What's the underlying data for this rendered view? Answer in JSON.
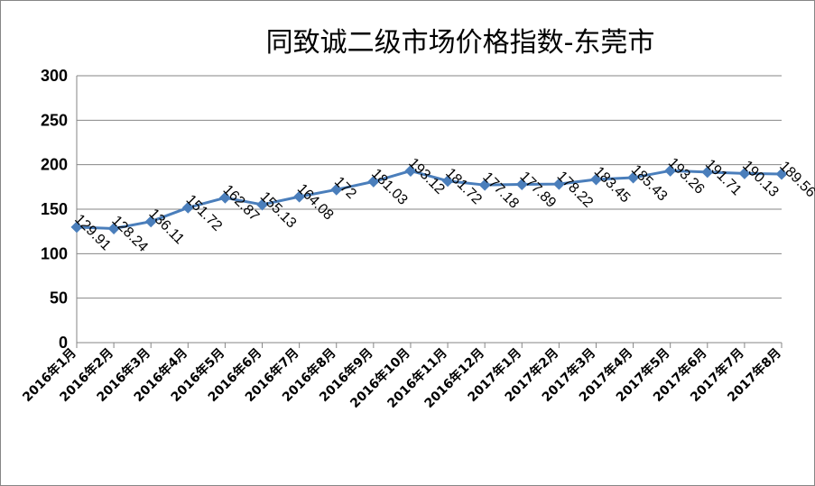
{
  "chart_data": {
    "type": "line",
    "title": "同致诚二级市场价格指数-东莞市",
    "xlabel": "",
    "ylabel": "",
    "categories": [
      "2016年1月",
      "2016年2月",
      "2016年3月",
      "2016年4月",
      "2016年5月",
      "2016年6月",
      "2016年7月",
      "2016年8月",
      "2016年9月",
      "2016年10月",
      "2016年11月",
      "2016年12月",
      "2017年1月",
      "2017年2月",
      "2017年3月",
      "2017年4月",
      "2017年5月",
      "2017年6月",
      "2017年7月",
      "2017年8月"
    ],
    "series": [
      {
        "values": [
          129.91,
          128.24,
          136.11,
          151.72,
          162.87,
          155.13,
          164.08,
          172,
          181.03,
          193.12,
          181.72,
          177.18,
          177.89,
          178.22,
          183.45,
          185.43,
          193.26,
          191.71,
          190.13,
          189.56
        ],
        "labels": [
          "129.91",
          "128.24",
          "136.11",
          "151.72",
          "162.87",
          "155.13",
          "164.08",
          "172",
          "181.03",
          "193.12",
          "181.72",
          "177.18",
          "177.89",
          "178.22",
          "183.45",
          "185.43",
          "193.26",
          "191.71",
          "190.13",
          "189.56"
        ],
        "color": "#4a7ebb",
        "marker": "diamond"
      }
    ],
    "yticks": [
      "0",
      "50",
      "100",
      "150",
      "200",
      "250",
      "300"
    ],
    "ylim": [
      0,
      300
    ],
    "grid": true,
    "legend": "none"
  }
}
